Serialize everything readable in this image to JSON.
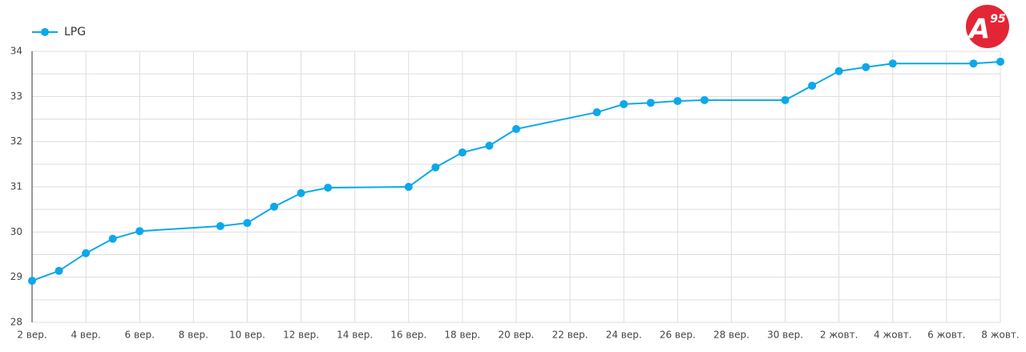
{
  "chart_data": {
    "type": "line",
    "logo": {
      "letter": "A",
      "superscript": "95"
    },
    "x": [
      0,
      1,
      2,
      3,
      4,
      7,
      8,
      9,
      10,
      11,
      14,
      15,
      16,
      17,
      18,
      21,
      22,
      23,
      24,
      25,
      28,
      29,
      30,
      31,
      32,
      35,
      36
    ],
    "series": [
      {
        "name": "LPG",
        "color": "#0ba8ea",
        "values": [
          28.92,
          29.14,
          29.53,
          29.85,
          30.02,
          30.13,
          30.2,
          30.56,
          30.86,
          30.98,
          31.0,
          31.43,
          31.76,
          31.91,
          32.28,
          32.65,
          32.83,
          32.86,
          32.9,
          32.92,
          32.92,
          33.24,
          33.56,
          33.65,
          33.73,
          33.73,
          33.77
        ]
      }
    ],
    "xlim": [
      0,
      36
    ],
    "xticks": [
      {
        "value": 0,
        "label": "2 вер."
      },
      {
        "value": 2,
        "label": "4 вер."
      },
      {
        "value": 4,
        "label": "6 вер."
      },
      {
        "value": 6,
        "label": "8 вер."
      },
      {
        "value": 8,
        "label": "10 вер."
      },
      {
        "value": 10,
        "label": "12 вер."
      },
      {
        "value": 12,
        "label": "14 вер."
      },
      {
        "value": 14,
        "label": "16 вер."
      },
      {
        "value": 16,
        "label": "18 вер."
      },
      {
        "value": 18,
        "label": "20 вер."
      },
      {
        "value": 20,
        "label": "22 вер."
      },
      {
        "value": 22,
        "label": "24 вер."
      },
      {
        "value": 24,
        "label": "26 вер."
      },
      {
        "value": 26,
        "label": "28 вер."
      },
      {
        "value": 28,
        "label": "30 вер."
      },
      {
        "value": 30,
        "label": "2 жовт."
      },
      {
        "value": 32,
        "label": "4 жовт."
      },
      {
        "value": 34,
        "label": "6 жовт."
      },
      {
        "value": 36,
        "label": "8 жовт."
      }
    ],
    "ylim": [
      28,
      34
    ],
    "yticks": [
      28,
      29,
      30,
      31,
      32,
      33,
      34
    ],
    "minor_yticks": [
      28.5,
      29.5,
      30.5,
      31.5,
      32.5,
      33.5
    ],
    "grid": true,
    "legend": "top-left"
  }
}
